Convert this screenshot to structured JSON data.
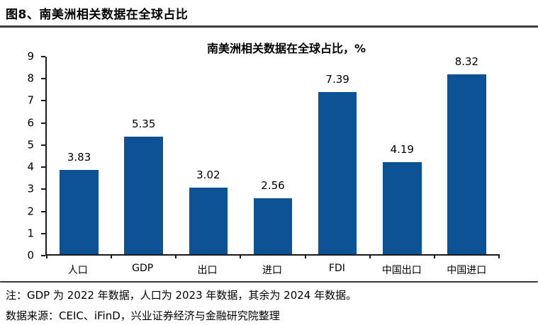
{
  "header": {
    "title": "图8、南美洲相关数据在全球占比"
  },
  "chart_data": {
    "type": "bar",
    "title": "南美洲相关数据在全球占比，%",
    "categories": [
      "人口",
      "GDP",
      "出口",
      "进口",
      "FDI",
      "中国出口",
      "中国进口"
    ],
    "values": [
      3.83,
      5.35,
      3.02,
      2.56,
      7.39,
      4.19,
      8.32
    ],
    "data_labels": [
      "3.83",
      "5.35",
      "3.02",
      "2.56",
      "7.39",
      "4.19",
      "8.32"
    ],
    "xlabel": "",
    "ylabel": "",
    "ylim": [
      0,
      9
    ],
    "yticks": [
      0,
      1,
      2,
      3,
      4,
      5,
      6,
      7,
      8,
      9
    ],
    "grid": false,
    "legend": "none",
    "bar_color": "#0E5296",
    "axis_color": "#1a1a1a"
  },
  "footer": {
    "note": "注：GDP 为 2022 年数据，人口为 2023 年数据，其余为 2024 年数据。",
    "source": "数据来源：CEIC、iFinD，兴业证券经济与金融研究院整理"
  }
}
